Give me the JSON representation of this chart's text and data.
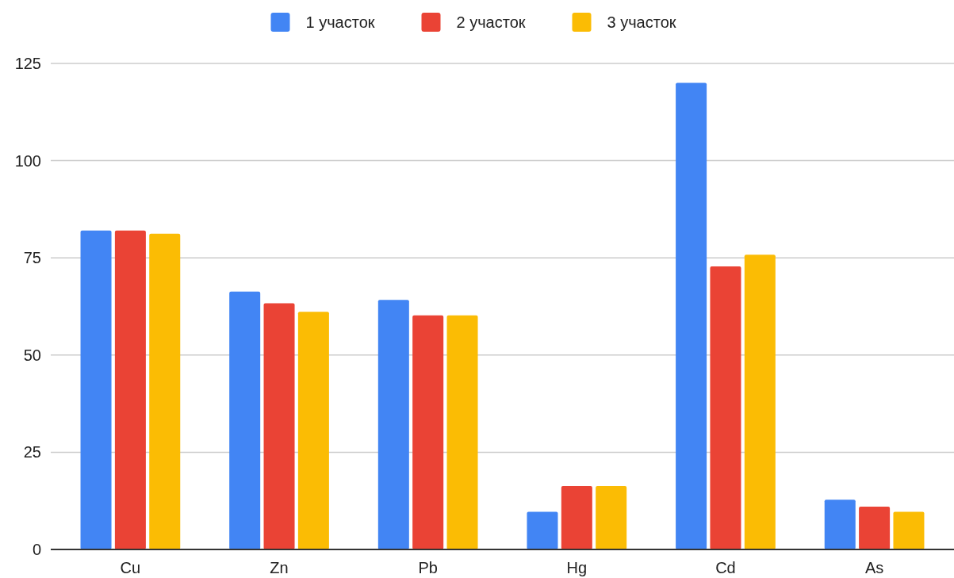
{
  "chart_data": {
    "type": "bar",
    "categories": [
      "Cu",
      "Zn",
      "Pb",
      "Hg",
      "Cd",
      "As"
    ],
    "series": [
      {
        "name": "1 участок",
        "color": "#4285f4",
        "values": [
          82,
          66.3,
          64.2,
          9.7,
          120,
          12.8
        ]
      },
      {
        "name": "2 участок",
        "color": "#ea4335",
        "values": [
          82,
          63.3,
          60.2,
          16.3,
          72.8,
          11
        ]
      },
      {
        "name": "3 участок",
        "color": "#fbbc04",
        "values": [
          81.2,
          61.1,
          60.2,
          16.3,
          75.8,
          9.7
        ]
      }
    ],
    "ylim": [
      0,
      125
    ],
    "yticks": [
      0,
      25,
      50,
      75,
      100,
      125
    ],
    "grid": "y",
    "legend": "top"
  }
}
